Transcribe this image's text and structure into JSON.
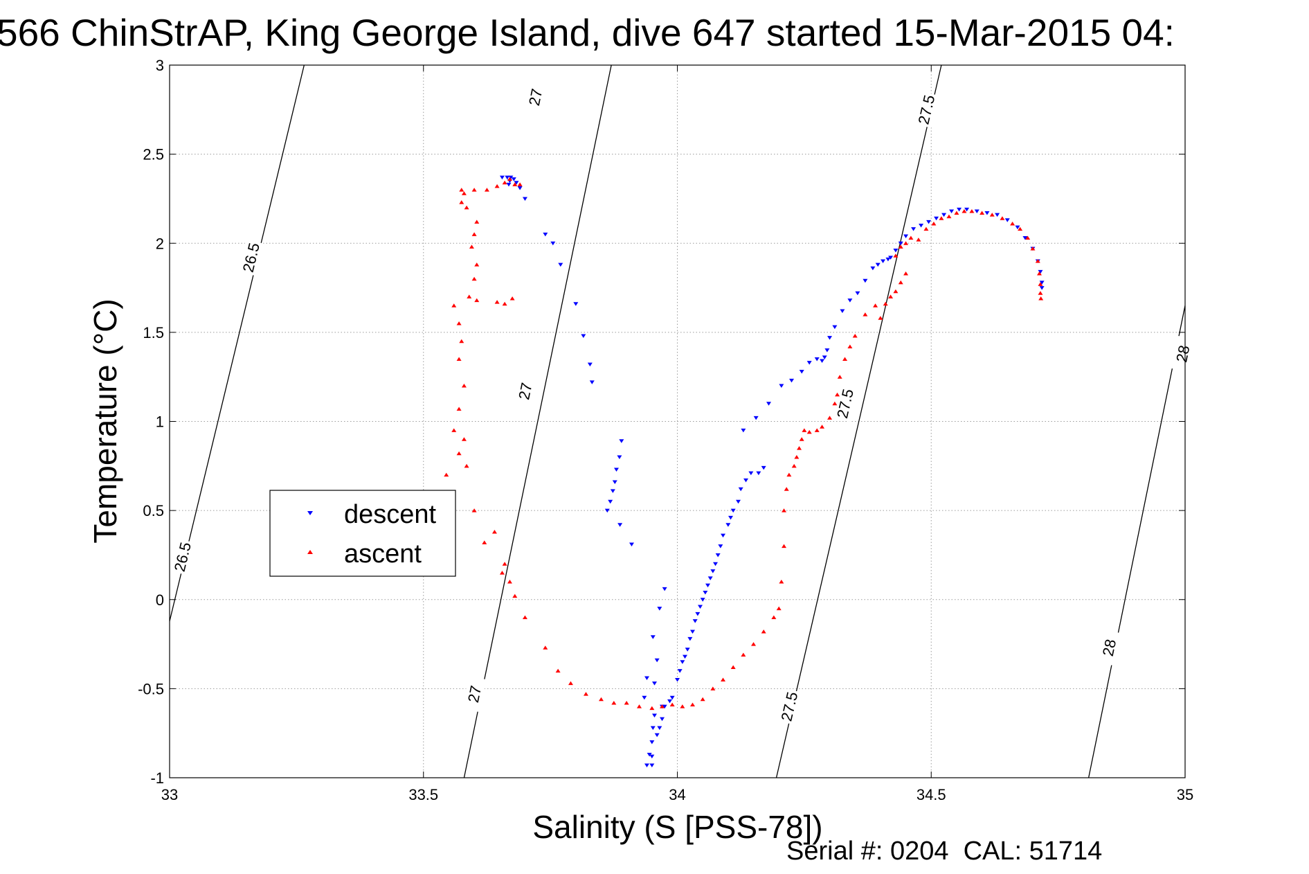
{
  "chart_data": {
    "type": "scatter",
    "title": "566 ChinStrAP, King George Island, dive 647 started 15-Mar-2015 04:",
    "xlabel": "Salinity (S [PSS-78])",
    "ylabel": "Temperature (°C)",
    "xlim": [
      33,
      35
    ],
    "ylim": [
      -1,
      3
    ],
    "xticks": [
      33,
      33.5,
      34,
      34.5,
      35
    ],
    "xtick_labels": [
      "33",
      "33.5",
      "34",
      "34.5",
      "35"
    ],
    "yticks": [
      -1,
      -0.5,
      0,
      0.5,
      1,
      1.5,
      2,
      2.5,
      3
    ],
    "ytick_labels": [
      "-1",
      "-0.5",
      "0",
      "0.5",
      "1",
      "1.5",
      "2",
      "2.5",
      "3"
    ],
    "grid": true,
    "legend_position": "middle-left",
    "footer": "Serial #: 0204  CAL: 51714",
    "contours": [
      {
        "level": "26.5",
        "points": [
          [
            32.995,
            -0.18
          ],
          [
            33.265,
            3.0
          ]
        ],
        "labels": [
          [
            33.16,
            1.92
          ],
          [
            33.025,
            0.24
          ]
        ]
      },
      {
        "level": "27",
        "points": [
          [
            33.58,
            -1.0
          ],
          [
            33.87,
            3.0
          ]
        ],
        "labels": [
          [
            33.72,
            2.82
          ],
          [
            33.7,
            1.17
          ],
          [
            33.6,
            -0.53
          ]
        ]
      },
      {
        "level": "27.5",
        "points": [
          [
            34.195,
            -1.0
          ],
          [
            34.52,
            3.0
          ]
        ],
        "labels": [
          [
            34.49,
            2.75
          ],
          [
            34.33,
            1.1
          ],
          [
            34.22,
            -0.6
          ]
        ]
      },
      {
        "level": "28",
        "points": [
          [
            34.81,
            -1.0
          ],
          [
            35.0,
            1.65
          ]
        ],
        "labels": [
          [
            34.995,
            1.38
          ],
          [
            34.85,
            -0.27
          ]
        ]
      }
    ],
    "series": [
      {
        "name": "descent",
        "color": "#0000ff",
        "marker": "triangle-down",
        "points": [
          [
            33.655,
            2.37
          ],
          [
            33.665,
            2.37
          ],
          [
            33.672,
            2.37
          ],
          [
            33.678,
            2.36
          ],
          [
            33.668,
            2.33
          ],
          [
            33.67,
            2.35
          ],
          [
            33.683,
            2.34
          ],
          [
            33.69,
            2.31
          ],
          [
            33.7,
            2.25
          ],
          [
            33.74,
            2.05
          ],
          [
            33.755,
            2.0
          ],
          [
            33.77,
            1.88
          ],
          [
            33.8,
            1.66
          ],
          [
            33.815,
            1.48
          ],
          [
            33.828,
            1.32
          ],
          [
            33.832,
            1.22
          ],
          [
            33.89,
            0.89
          ],
          [
            33.886,
            0.8
          ],
          [
            33.88,
            0.73
          ],
          [
            33.877,
            0.66
          ],
          [
            33.873,
            0.61
          ],
          [
            33.868,
            0.55
          ],
          [
            33.862,
            0.5
          ],
          [
            33.887,
            0.42
          ],
          [
            33.91,
            0.31
          ],
          [
            33.975,
            0.06
          ],
          [
            33.965,
            -0.05
          ],
          [
            33.952,
            -0.21
          ],
          [
            33.96,
            -0.34
          ],
          [
            33.94,
            -0.44
          ],
          [
            33.935,
            -0.55
          ],
          [
            33.955,
            -0.47
          ],
          [
            33.97,
            -0.6
          ],
          [
            33.955,
            -0.65
          ],
          [
            33.952,
            -0.72
          ],
          [
            33.95,
            -0.8
          ],
          [
            33.945,
            -0.87
          ],
          [
            33.94,
            -0.93
          ],
          [
            33.95,
            -0.93
          ],
          [
            33.95,
            -0.88
          ],
          [
            33.96,
            -0.76
          ],
          [
            33.965,
            -0.72
          ],
          [
            33.97,
            -0.67
          ],
          [
            33.975,
            -0.6
          ],
          [
            33.985,
            -0.57
          ],
          [
            33.99,
            -0.55
          ],
          [
            34.0,
            -0.45
          ],
          [
            34.005,
            -0.4
          ],
          [
            34.01,
            -0.35
          ],
          [
            34.015,
            -0.32
          ],
          [
            34.02,
            -0.28
          ],
          [
            34.025,
            -0.22
          ],
          [
            34.03,
            -0.18
          ],
          [
            34.035,
            -0.12
          ],
          [
            34.04,
            -0.08
          ],
          [
            34.045,
            -0.04
          ],
          [
            34.05,
            0.0
          ],
          [
            34.055,
            0.04
          ],
          [
            34.06,
            0.08
          ],
          [
            34.065,
            0.12
          ],
          [
            34.07,
            0.16
          ],
          [
            34.075,
            0.2
          ],
          [
            34.08,
            0.25
          ],
          [
            34.085,
            0.3
          ],
          [
            34.09,
            0.36
          ],
          [
            34.1,
            0.42
          ],
          [
            34.105,
            0.46
          ],
          [
            34.11,
            0.5
          ],
          [
            34.12,
            0.55
          ],
          [
            34.125,
            0.62
          ],
          [
            34.135,
            0.67
          ],
          [
            34.145,
            0.71
          ],
          [
            34.16,
            0.71
          ],
          [
            34.17,
            0.74
          ],
          [
            34.13,
            0.95
          ],
          [
            34.155,
            1.02
          ],
          [
            34.18,
            1.1
          ],
          [
            34.205,
            1.2
          ],
          [
            34.225,
            1.23
          ],
          [
            34.245,
            1.28
          ],
          [
            34.26,
            1.33
          ],
          [
            34.275,
            1.35
          ],
          [
            34.285,
            1.34
          ],
          [
            34.29,
            1.36
          ],
          [
            34.295,
            1.4
          ],
          [
            34.3,
            1.47
          ],
          [
            34.31,
            1.53
          ],
          [
            34.325,
            1.62
          ],
          [
            34.34,
            1.68
          ],
          [
            34.355,
            1.72
          ],
          [
            34.37,
            1.79
          ],
          [
            34.385,
            1.86
          ],
          [
            34.395,
            1.88
          ],
          [
            34.405,
            1.9
          ],
          [
            34.415,
            1.91
          ],
          [
            34.42,
            1.92
          ],
          [
            34.43,
            1.96
          ],
          [
            34.44,
            2.0
          ],
          [
            34.45,
            2.04
          ],
          [
            34.465,
            2.08
          ],
          [
            34.48,
            2.1
          ],
          [
            34.495,
            2.12
          ],
          [
            34.51,
            2.14
          ],
          [
            34.525,
            2.16
          ],
          [
            34.54,
            2.18
          ],
          [
            34.555,
            2.19
          ],
          [
            34.57,
            2.19
          ],
          [
            34.59,
            2.18
          ],
          [
            34.61,
            2.17
          ],
          [
            34.63,
            2.16
          ],
          [
            34.65,
            2.13
          ],
          [
            34.67,
            2.09
          ],
          [
            34.685,
            2.03
          ],
          [
            34.7,
            1.97
          ],
          [
            34.71,
            1.9
          ],
          [
            34.715,
            1.84
          ],
          [
            34.718,
            1.78
          ],
          [
            34.718,
            1.75
          ]
        ]
      },
      {
        "name": "ascent",
        "color": "#ff0000",
        "marker": "triangle-up",
        "points": [
          [
            33.575,
            2.3
          ],
          [
            33.58,
            2.28
          ],
          [
            33.6,
            2.3
          ],
          [
            33.625,
            2.3
          ],
          [
            33.645,
            2.32
          ],
          [
            33.66,
            2.34
          ],
          [
            33.67,
            2.36
          ],
          [
            33.68,
            2.33
          ],
          [
            33.69,
            2.33
          ],
          [
            33.575,
            2.23
          ],
          [
            33.585,
            2.2
          ],
          [
            33.605,
            2.12
          ],
          [
            33.6,
            2.05
          ],
          [
            33.595,
            1.98
          ],
          [
            33.605,
            1.88
          ],
          [
            33.6,
            1.8
          ],
          [
            33.59,
            1.7
          ],
          [
            33.605,
            1.68
          ],
          [
            33.645,
            1.67
          ],
          [
            33.66,
            1.66
          ],
          [
            33.675,
            1.69
          ],
          [
            33.56,
            1.65
          ],
          [
            33.57,
            1.55
          ],
          [
            33.575,
            1.45
          ],
          [
            33.57,
            1.35
          ],
          [
            33.58,
            1.2
          ],
          [
            33.57,
            1.07
          ],
          [
            33.56,
            0.95
          ],
          [
            33.58,
            0.9
          ],
          [
            33.57,
            0.82
          ],
          [
            33.585,
            0.75
          ],
          [
            33.545,
            0.7
          ],
          [
            33.6,
            0.5
          ],
          [
            33.64,
            0.38
          ],
          [
            33.62,
            0.32
          ],
          [
            33.66,
            0.2
          ],
          [
            33.655,
            0.15
          ],
          [
            33.67,
            0.1
          ],
          [
            33.68,
            0.02
          ],
          [
            33.7,
            -0.1
          ],
          [
            33.74,
            -0.27
          ],
          [
            33.765,
            -0.4
          ],
          [
            33.79,
            -0.47
          ],
          [
            33.82,
            -0.53
          ],
          [
            33.85,
            -0.56
          ],
          [
            33.875,
            -0.58
          ],
          [
            33.9,
            -0.58
          ],
          [
            33.925,
            -0.6
          ],
          [
            33.95,
            -0.61
          ],
          [
            33.97,
            -0.6
          ],
          [
            33.99,
            -0.59
          ],
          [
            34.01,
            -0.6
          ],
          [
            34.03,
            -0.59
          ],
          [
            34.05,
            -0.56
          ],
          [
            34.07,
            -0.5
          ],
          [
            34.09,
            -0.45
          ],
          [
            34.11,
            -0.38
          ],
          [
            34.13,
            -0.31
          ],
          [
            34.15,
            -0.25
          ],
          [
            34.17,
            -0.18
          ],
          [
            34.19,
            -0.1
          ],
          [
            34.2,
            -0.05
          ],
          [
            34.205,
            0.1
          ],
          [
            34.21,
            0.3
          ],
          [
            34.21,
            0.5
          ],
          [
            34.215,
            0.62
          ],
          [
            34.22,
            0.7
          ],
          [
            34.23,
            0.75
          ],
          [
            34.235,
            0.8
          ],
          [
            34.24,
            0.85
          ],
          [
            34.245,
            0.9
          ],
          [
            34.25,
            0.95
          ],
          [
            34.26,
            0.94
          ],
          [
            34.275,
            0.95
          ],
          [
            34.285,
            0.97
          ],
          [
            34.3,
            1.02
          ],
          [
            34.31,
            1.1
          ],
          [
            34.315,
            1.15
          ],
          [
            34.32,
            1.25
          ],
          [
            34.33,
            1.35
          ],
          [
            34.34,
            1.42
          ],
          [
            34.35,
            1.48
          ],
          [
            34.37,
            1.6
          ],
          [
            34.39,
            1.65
          ],
          [
            34.4,
            1.58
          ],
          [
            34.41,
            1.66
          ],
          [
            34.42,
            1.7
          ],
          [
            34.43,
            1.73
          ],
          [
            34.44,
            1.78
          ],
          [
            34.45,
            1.83
          ],
          [
            34.43,
            1.93
          ],
          [
            34.44,
            1.98
          ],
          [
            34.45,
            2.0
          ],
          [
            34.46,
            2.03
          ],
          [
            34.475,
            2.02
          ],
          [
            34.49,
            2.08
          ],
          [
            34.505,
            2.11
          ],
          [
            34.52,
            2.14
          ],
          [
            34.535,
            2.15
          ],
          [
            34.55,
            2.17
          ],
          [
            34.565,
            2.18
          ],
          [
            34.58,
            2.18
          ],
          [
            34.6,
            2.17
          ],
          [
            34.62,
            2.16
          ],
          [
            34.64,
            2.14
          ],
          [
            34.66,
            2.11
          ],
          [
            34.675,
            2.08
          ],
          [
            34.69,
            2.03
          ],
          [
            34.7,
            1.97
          ],
          [
            34.71,
            1.9
          ],
          [
            34.713,
            1.83
          ],
          [
            34.715,
            1.77
          ],
          [
            34.715,
            1.72
          ],
          [
            34.716,
            1.69
          ]
        ]
      }
    ]
  }
}
